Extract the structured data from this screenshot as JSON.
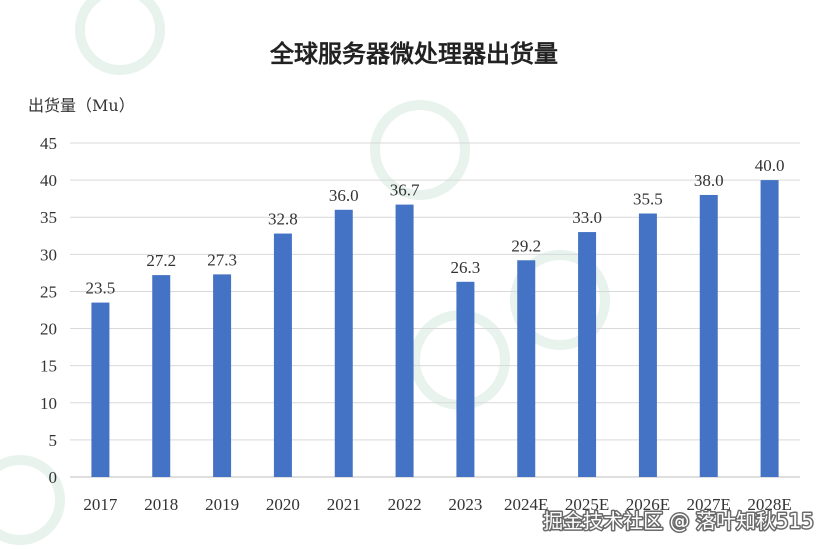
{
  "chart_data": {
    "type": "bar",
    "title": "全球服务器微处理器出货量",
    "xlabel": "",
    "ylabel": "出货量（Mu）",
    "categories": [
      "2017",
      "2018",
      "2019",
      "2020",
      "2021",
      "2022",
      "2023",
      "2024E",
      "2025E",
      "2026E",
      "2027E",
      "2028E"
    ],
    "values": [
      23.5,
      27.2,
      27.3,
      32.8,
      36.0,
      36.7,
      26.3,
      29.2,
      33.0,
      35.5,
      38.0,
      40.0
    ],
    "data_labels": [
      "23.5",
      "27.2",
      "27.3",
      "32.8",
      "36.0",
      "36.7",
      "26.3",
      "29.2",
      "33.0",
      "35.5",
      "38.0",
      "40.0"
    ],
    "yticks": [
      0,
      5,
      10,
      15,
      20,
      25,
      30,
      35,
      40,
      45
    ],
    "ylim": [
      0,
      45
    ],
    "grid": true,
    "legend": "none",
    "bar_color": "#4472C4"
  },
  "watermark": "掘金技术社区 @ 落叶知秋515"
}
